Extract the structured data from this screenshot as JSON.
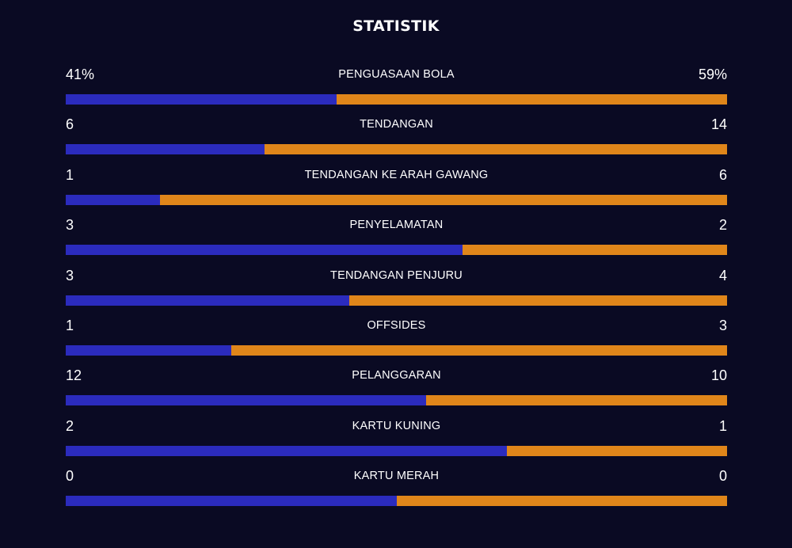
{
  "title": "STATISTIK",
  "colors": {
    "home": "#2b2bbd",
    "away": "#e0861a",
    "background": "#0a0a23"
  },
  "chart_data": {
    "type": "bar",
    "title": "STATISTIK",
    "categories": [
      "PENGUASAAN BOLA",
      "TENDANGAN",
      "TENDANGAN KE ARAH GAWANG",
      "PENYELAMATAN",
      "TENDANGAN PENJURU",
      "OFFSIDES",
      "PELANGGARAN",
      "KARTU KUNING",
      "KARTU MERAH"
    ],
    "series": [
      {
        "values": [
          41,
          6,
          1,
          3,
          3,
          1,
          12,
          2,
          0
        ]
      },
      {
        "values": [
          59,
          14,
          6,
          2,
          4,
          3,
          10,
          1,
          0
        ]
      }
    ],
    "display": [
      {
        "home": "41%",
        "away": "59%"
      },
      {
        "home": "6",
        "away": "14"
      },
      {
        "home": "1",
        "away": "6"
      },
      {
        "home": "3",
        "away": "2"
      },
      {
        "home": "3",
        "away": "4"
      },
      {
        "home": "1",
        "away": "3"
      },
      {
        "home": "12",
        "away": "10"
      },
      {
        "home": "2",
        "away": "1"
      },
      {
        "home": "0",
        "away": "0"
      }
    ]
  }
}
